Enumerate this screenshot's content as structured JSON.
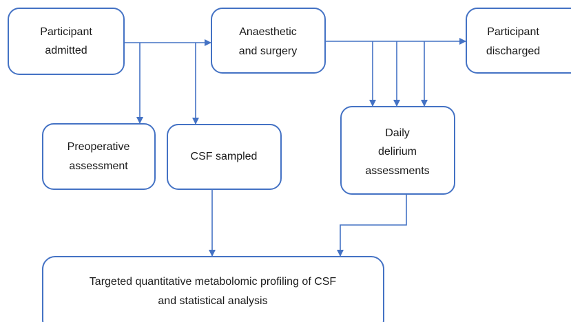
{
  "nodes": [
    {
      "lines": [
        "Participant",
        "admitted"
      ]
    },
    {
      "lines": [
        "Anaesthetic",
        "and surgery"
      ]
    },
    {
      "lines": [
        "Participant",
        "discharged"
      ]
    },
    {
      "lines": [
        "Preoperative",
        "assessment"
      ]
    },
    {
      "lines": [
        "CSF sampled"
      ]
    },
    {
      "lines": [
        "Daily",
        "delirium",
        "assessments"
      ]
    },
    {
      "lines": [
        "Targeted quantitative metabolomic profiling of CSF",
        "and statistical analysis"
      ]
    }
  ]
}
